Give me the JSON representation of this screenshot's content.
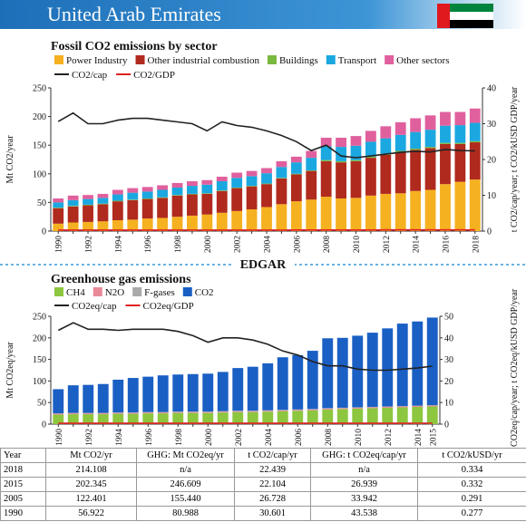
{
  "header": {
    "title": "United Arab Emirates"
  },
  "logo": "EDGAR",
  "chart_data": [
    {
      "type": "bar",
      "stacked": true,
      "title": "Fossil CO2 emissions by sector",
      "y_label": "Mt CO2/year",
      "y2_label": "t CO2/cap/year; t CO2/kUSD GDP/year",
      "categories": [
        "1990",
        null,
        "1992",
        null,
        "1994",
        null,
        "1996",
        null,
        "1998",
        null,
        "2000",
        null,
        "2002",
        null,
        "2004",
        null,
        "2006",
        null,
        "2008",
        null,
        "2010",
        null,
        "2012",
        null,
        "2014",
        null,
        "2016",
        null,
        "2018"
      ],
      "ylim": [
        0,
        250
      ],
      "yticks": [
        0,
        50,
        100,
        150,
        200,
        250
      ],
      "y2lim": [
        0,
        40
      ],
      "y2ticks": [
        0,
        10,
        20,
        30,
        40
      ],
      "series": [
        {
          "name": "Power Industry",
          "color": "#f5b120",
          "values": [
            13,
            15,
            16,
            17,
            19,
            20,
            22,
            23,
            25,
            27,
            29,
            32,
            35,
            38,
            42,
            47,
            52,
            55,
            60,
            57,
            58,
            62,
            65,
            66,
            70,
            72,
            82,
            86,
            90
          ]
        },
        {
          "name": "Other industrial combustion",
          "color": "#b02a1e",
          "values": [
            27,
            28,
            29,
            30,
            33,
            34,
            34,
            35,
            37,
            37,
            36,
            38,
            40,
            40,
            40,
            45,
            47,
            50,
            62,
            63,
            64,
            66,
            68,
            72,
            72,
            73,
            70,
            66,
            65
          ]
        },
        {
          "name": "Buildings",
          "color": "#7ab940",
          "values": [
            1,
            1,
            1,
            1,
            1,
            1,
            1,
            1,
            1,
            1,
            1,
            1,
            1,
            1,
            1,
            1,
            1,
            1,
            2,
            2,
            2,
            2,
            2,
            2,
            2,
            2,
            2,
            2,
            2
          ]
        },
        {
          "name": "Transport",
          "color": "#1ba8e0",
          "values": [
            9,
            10,
            10,
            10,
            11,
            12,
            12,
            13,
            13,
            14,
            15,
            16,
            17,
            17,
            18,
            19,
            20,
            22,
            24,
            25,
            25,
            26,
            27,
            28,
            29,
            30,
            30,
            31,
            32
          ]
        },
        {
          "name": "Other sectors",
          "color": "#e0609e",
          "values": [
            7,
            8,
            7,
            7,
            8,
            8,
            8,
            8,
            8,
            8,
            8,
            8,
            9,
            9,
            9,
            10,
            10,
            12,
            15,
            16,
            17,
            19,
            21,
            22,
            24,
            25,
            24,
            23,
            25
          ]
        },
        {
          "name": "CO2/cap",
          "color": "#222222",
          "axis": "y2",
          "values": [
            30.6,
            33,
            30,
            30,
            31,
            31.5,
            31.5,
            31,
            30.5,
            30,
            28,
            30.5,
            29.5,
            29,
            28,
            26.7,
            25,
            22.5,
            24,
            21,
            20.5,
            21,
            21.5,
            22,
            22.3,
            22.1,
            22.8,
            22.5,
            22.4
          ]
        },
        {
          "name": "CO2/GDP",
          "color": "#e02020",
          "axis": "y2",
          "values": [
            0.277,
            0.278,
            0.279,
            0.28,
            0.281,
            0.282,
            0.283,
            0.284,
            0.284,
            0.285,
            0.286,
            0.287,
            0.288,
            0.289,
            0.29,
            0.291,
            0.295,
            0.299,
            0.303,
            0.307,
            0.311,
            0.315,
            0.32,
            0.324,
            0.328,
            0.332,
            0.333,
            0.333,
            0.334
          ]
        }
      ]
    },
    {
      "type": "bar",
      "stacked": true,
      "title": "Greenhouse gas emissions",
      "y_label": "Mt CO2eq/year",
      "y2_label": "t CO2eq/cap/year; t CO2eq/kUSD GDP/year",
      "categories": [
        "1990",
        null,
        "1992",
        null,
        "1994",
        null,
        "1996",
        null,
        "1998",
        null,
        "2000",
        null,
        "2002",
        null,
        "2004",
        null,
        "2006",
        null,
        "2008",
        null,
        "2010",
        null,
        "2012",
        null,
        "2014",
        "2015"
      ],
      "ylim": [
        0,
        250
      ],
      "yticks": [
        0,
        50,
        100,
        150,
        200,
        250
      ],
      "y2lim": [
        0,
        50
      ],
      "y2ticks": [
        0,
        10,
        20,
        30,
        40,
        50
      ],
      "series": [
        {
          "name": "CH4",
          "color": "#8dc63f",
          "values": [
            22,
            23,
            23,
            23,
            24,
            24,
            25,
            25,
            26,
            26,
            26,
            27,
            28,
            28,
            29,
            30,
            31,
            32,
            34,
            35,
            36,
            37,
            38,
            39,
            40,
            41
          ]
        },
        {
          "name": "N2O",
          "color": "#e88a9a",
          "values": [
            2,
            2,
            2,
            2,
            2,
            2,
            2,
            2,
            2,
            2,
            2,
            2,
            2,
            2,
            2,
            2,
            2,
            2,
            2,
            2,
            2,
            2,
            2,
            2,
            2,
            2
          ]
        },
        {
          "name": "F-gases",
          "color": "#aaaaaa",
          "values": [
            1,
            1,
            1,
            1,
            1,
            1,
            1,
            1,
            1,
            1,
            1,
            1,
            1,
            1,
            1,
            1,
            1,
            1,
            1,
            1,
            1,
            1,
            1,
            1,
            1,
            1
          ]
        },
        {
          "name": "CO2",
          "color": "#1a5fc4",
          "values": [
            56,
            64,
            65,
            67,
            76,
            80,
            82,
            85,
            86,
            87,
            88,
            91,
            99,
            102,
            109,
            122,
            126,
            135,
            162,
            162,
            166,
            172,
            181,
            191,
            195,
            203
          ]
        },
        {
          "name": "CO2eq/cap",
          "color": "#222222",
          "axis": "y2",
          "values": [
            43.5,
            47,
            44,
            44,
            43.5,
            44,
            44,
            44,
            43,
            41,
            38,
            40,
            40,
            39,
            37,
            33.9,
            32,
            29,
            27,
            27,
            25.5,
            25,
            25,
            25.5,
            26,
            26.9
          ]
        },
        {
          "name": "CO2eq/GDP",
          "color": "#e02020",
          "axis": "y2",
          "values": [
            0.394,
            0.392,
            0.391,
            0.389,
            0.388,
            0.386,
            0.384,
            0.383,
            0.381,
            0.38,
            0.378,
            0.376,
            0.375,
            0.373,
            0.372,
            0.37,
            0.374,
            0.377,
            0.381,
            0.384,
            0.388,
            0.391,
            0.395,
            0.398,
            0.402,
            0.405
          ]
        }
      ]
    }
  ],
  "table": {
    "header": [
      "Year",
      "Mt CO2/yr",
      "GHG: Mt CO2eq/yr",
      "t CO2/cap/yr",
      "GHG: t CO2eq/cap/yr",
      "t CO2/kUSD/yr"
    ],
    "rows": [
      [
        "2018",
        "214.108",
        "n/a",
        "22.439",
        "n/a",
        "0.334"
      ],
      [
        "2015",
        "202.345",
        "246.609",
        "22.104",
        "26.939",
        "0.332"
      ],
      [
        "2005",
        "122.401",
        "155.440",
        "26.728",
        "33.942",
        "0.291"
      ],
      [
        "1990",
        "56.922",
        "80.988",
        "30.601",
        "43.538",
        "0.277"
      ]
    ]
  }
}
